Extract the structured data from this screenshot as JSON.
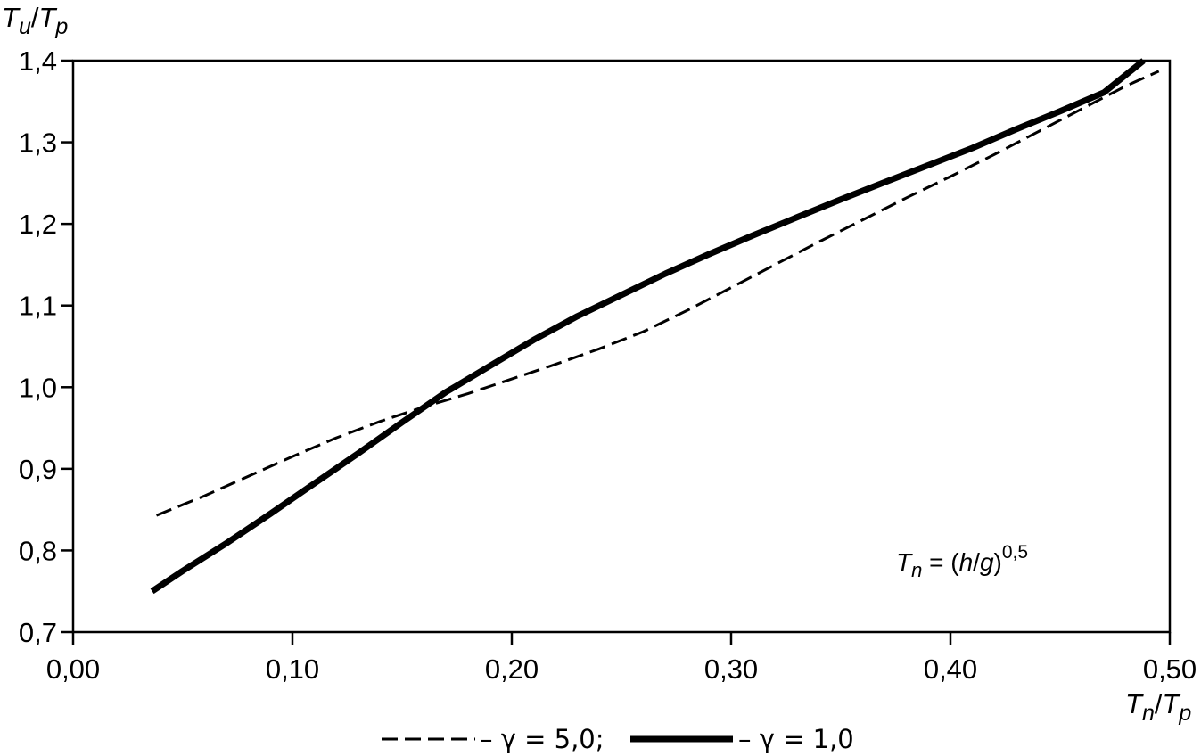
{
  "chart_data": {
    "type": "line",
    "ylabel": {
      "main": "T",
      "sub1": "u",
      "sep": "/",
      "main2": "T",
      "sub2": "p"
    },
    "xlabel": {
      "main": "T",
      "sub1": "n",
      "sep": "/",
      "main2": "T",
      "sub2": "p"
    },
    "xlim": [
      0.0,
      0.5
    ],
    "ylim": [
      0.7,
      1.4
    ],
    "x_ticks": [
      0.0,
      0.1,
      0.2,
      0.3,
      0.4,
      0.5
    ],
    "x_tick_labels": [
      "0,00",
      "0,10",
      "0,20",
      "0,30",
      "0,40",
      "0,50"
    ],
    "y_ticks": [
      0.7,
      0.8,
      0.9,
      1.0,
      1.1,
      1.2,
      1.3,
      1.4
    ],
    "y_tick_labels": [
      "0,7",
      "0,8",
      "0,9",
      "1,0",
      "1,1",
      "1,2",
      "1,3",
      "1,4"
    ],
    "grid": false,
    "annotation": {
      "t": "T",
      "t_sub": "n",
      "eq": " = (",
      "h": "h",
      "slash": "/",
      "g": "g",
      "close": ")",
      "exp": "0,5"
    },
    "series": [
      {
        "name": "γ = 5,0",
        "style": "dashed",
        "color": "#000000",
        "x": [
          0.038,
          0.06,
          0.08,
          0.1,
          0.12,
          0.14,
          0.16,
          0.18,
          0.2,
          0.22,
          0.24,
          0.26,
          0.28,
          0.3,
          0.32,
          0.34,
          0.36,
          0.38,
          0.4,
          0.42,
          0.44,
          0.46,
          0.48,
          0.495
        ],
        "y": [
          0.843,
          0.867,
          0.891,
          0.915,
          0.938,
          0.958,
          0.976,
          0.992,
          1.01,
          1.028,
          1.047,
          1.068,
          1.094,
          1.122,
          1.15,
          1.178,
          1.205,
          1.232,
          1.258,
          1.285,
          1.313,
          1.341,
          1.369,
          1.387
        ]
      },
      {
        "name": "γ = 1,0",
        "style": "solid",
        "color": "#000000",
        "x": [
          0.036,
          0.05,
          0.07,
          0.09,
          0.11,
          0.13,
          0.15,
          0.17,
          0.19,
          0.21,
          0.23,
          0.25,
          0.27,
          0.29,
          0.31,
          0.33,
          0.35,
          0.37,
          0.39,
          0.41,
          0.43,
          0.45,
          0.47,
          0.488
        ],
        "y": [
          0.75,
          0.775,
          0.809,
          0.845,
          0.882,
          0.919,
          0.957,
          0.994,
          1.026,
          1.058,
          1.087,
          1.113,
          1.139,
          1.163,
          1.186,
          1.208,
          1.23,
          1.251,
          1.272,
          1.293,
          1.316,
          1.338,
          1.361,
          1.4
        ]
      }
    ],
    "legend": {
      "position": "bottom",
      "items": [
        {
          "dash": "– γ = 5,0;"
        },
        {
          "dash": "– γ = 1,0"
        }
      ]
    }
  }
}
